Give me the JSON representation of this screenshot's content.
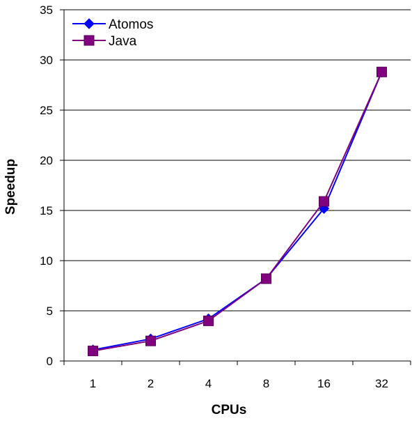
{
  "chart_data": {
    "type": "line",
    "title": "",
    "xlabel": "CPUs",
    "ylabel": "Speedup",
    "categories": [
      "1",
      "2",
      "4",
      "8",
      "16",
      "32"
    ],
    "ylim": [
      0,
      35
    ],
    "yticks": [
      0,
      5,
      10,
      15,
      20,
      25,
      30,
      35
    ],
    "grid": "horizontal",
    "legend_position": "top-left",
    "series": [
      {
        "name": "Atomos",
        "values": [
          1.1,
          2.2,
          4.2,
          8.2,
          15.2,
          28.8
        ],
        "color": "#0000ff",
        "marker": "diamond"
      },
      {
        "name": "Java",
        "values": [
          1.0,
          2.0,
          4.0,
          8.2,
          15.9,
          28.8
        ],
        "color": "#800080",
        "marker": "square"
      }
    ]
  }
}
